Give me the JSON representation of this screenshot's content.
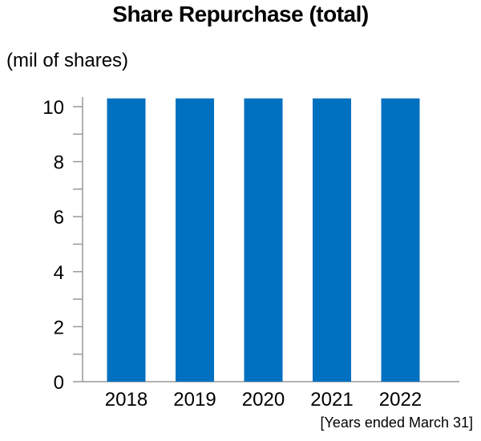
{
  "chart_data": {
    "type": "bar",
    "title": "Share Repurchase (total)",
    "ylabel": "(mil of shares)",
    "xnote": "[Years ended March 31]",
    "categories": [
      "2018",
      "2019",
      "2020",
      "2021",
      "2022"
    ],
    "values": [
      10.3,
      10.3,
      10.3,
      10.3,
      10.3
    ],
    "ylim": [
      0,
      10
    ],
    "yticks": [
      0,
      2,
      4,
      6,
      8,
      10
    ],
    "grid": false,
    "bar_color": "#0070c0",
    "axis_color": "#999999"
  }
}
